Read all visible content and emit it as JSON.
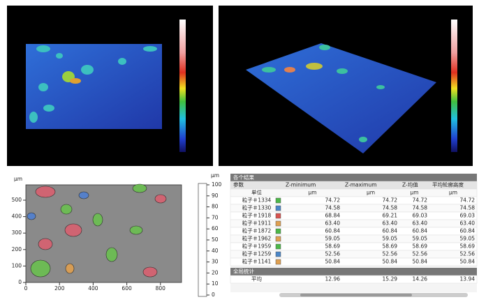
{
  "map": {
    "unit": "μm",
    "xticks": [
      0,
      200,
      400,
      600,
      800
    ],
    "yticks": [
      0,
      100,
      200,
      300,
      400,
      500
    ]
  },
  "scale": {
    "unit": "μm",
    "ticks": [
      0,
      10,
      20,
      30,
      40,
      50,
      60,
      70,
      80,
      90,
      100
    ]
  },
  "table": {
    "title": "各个结果",
    "header": [
      "参数",
      "Z-minimum",
      "Z-maximum",
      "Z-均值",
      "平均轮廓高度"
    ],
    "units": [
      "单位",
      "μm",
      "μm",
      "μm",
      "μm"
    ],
    "rows": [
      {
        "name": "粒子＃1334",
        "color": "#4cb848",
        "values": [
          "74.72",
          "74.72",
          "74.72",
          "74.72"
        ]
      },
      {
        "name": "粒子＃1330",
        "color": "#4a86c8",
        "values": [
          "74.58",
          "74.58",
          "74.58",
          "74.58"
        ]
      },
      {
        "name": "粒子＃1918",
        "color": "#d9534f",
        "values": [
          "68.84",
          "69.21",
          "69.03",
          "69.03"
        ]
      },
      {
        "name": "粒子＃1911",
        "color": "#e0a050",
        "values": [
          "63.40",
          "63.40",
          "63.40",
          "63.40"
        ]
      },
      {
        "name": "粒子＃1872",
        "color": "#4cb848",
        "values": [
          "60.84",
          "60.84",
          "60.84",
          "60.84"
        ]
      },
      {
        "name": "粒子＃1962",
        "color": "#e0a050",
        "values": [
          "59.05",
          "59.05",
          "59.05",
          "59.05"
        ]
      },
      {
        "name": "粒子＃1959",
        "color": "#4cb848",
        "values": [
          "58.69",
          "58.69",
          "58.69",
          "58.69"
        ]
      },
      {
        "name": "粒子＃1259",
        "color": "#4a86c8",
        "values": [
          "52.56",
          "52.56",
          "52.56",
          "52.56"
        ]
      },
      {
        "name": "粒子＃1141",
        "color": "#e0a050",
        "values": [
          "50.84",
          "50.84",
          "50.84",
          "50.84"
        ]
      }
    ],
    "section": "全局统计",
    "summary": [
      "平均",
      "12.96",
      "15.29",
      "14.26",
      "13.94"
    ]
  }
}
